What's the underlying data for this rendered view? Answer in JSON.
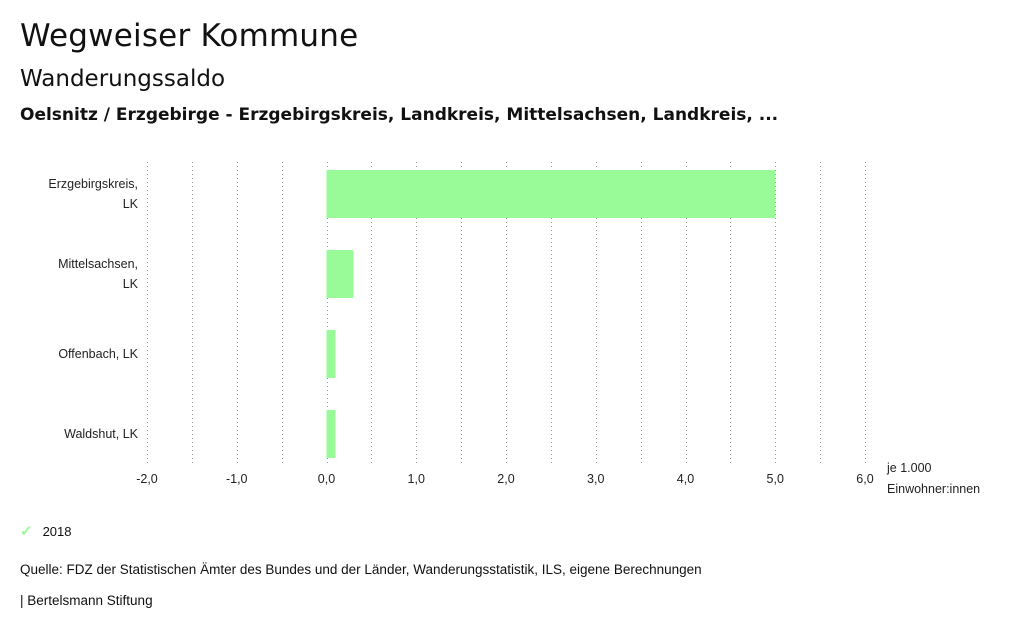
{
  "header": {
    "title": "Wegweiser Kommune",
    "subtitle": "Wanderungssaldo",
    "region": "Oelsnitz / Erzgebirge - Erzgebirgskreis, Landkreis, Mittelsachsen, Landkreis, ..."
  },
  "chart_data": {
    "type": "bar",
    "orientation": "horizontal",
    "categories": [
      [
        "Erzgebirgskreis,",
        "LK"
      ],
      [
        "Mittelsachsen,",
        "LK"
      ],
      [
        "Offenbach, LK"
      ],
      [
        "Waldshut, LK"
      ]
    ],
    "series": [
      {
        "name": "2018",
        "values": [
          5.0,
          0.3,
          0.1,
          0.1
        ],
        "color": "#98fb98"
      }
    ],
    "xlim": [
      -2.0,
      6.0
    ],
    "x_ticks": [
      -2.0,
      -1.0,
      0.0,
      1.0,
      2.0,
      3.0,
      4.0,
      5.0,
      6.0
    ],
    "x_tick_labels": [
      "-2,0",
      "-1,0",
      "0,0",
      "1,0",
      "2,0",
      "3,0",
      "4,0",
      "5,0",
      "6,0"
    ],
    "x_unit_label": [
      "je 1.000",
      "Einwohner:innen"
    ],
    "grid": "vertical dotted, every 0.5",
    "legend_position": "bottom-left"
  },
  "legend": {
    "check_icon": "check-icon",
    "label": "2018"
  },
  "footer": {
    "source": "Quelle: FDZ der Statistischen Ämter des Bundes und der Länder, Wanderungsstatistik, ILS, eigene Berechnungen",
    "brand": "| Bertelsmann Stiftung"
  }
}
